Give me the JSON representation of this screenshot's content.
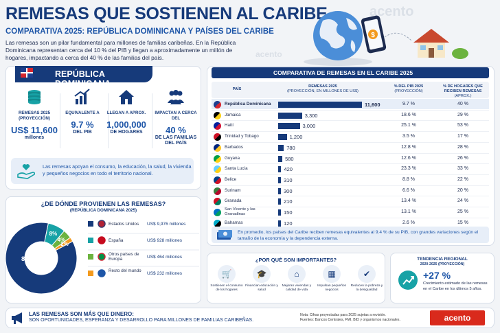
{
  "header": {
    "title": "REMESAS QUE SOSTIENEN AL CARIBE",
    "subtitle": "COMPARATIVA 2025: REPÚBLICA DOMINICANA Y PAÍSES DEL CARIBE",
    "intro": "Las remesas son un pilar fundamental para millones de familias caribeñas. En la República Dominicana representan cerca del 10 % del PIB y llegan a aproximadamente un millón de hogares, impactando a cerca del 40 % de las familias del país.",
    "watermark": "acento"
  },
  "rd": {
    "banner": "REPÚBLICA DOMINICANA",
    "stats": [
      {
        "label": "REMESAS 2025 (PROYECCIÓN)",
        "value": "US$ 11,600",
        "unit": "millones",
        "icon": "coins-icon"
      },
      {
        "label": "EQUIVALENTE A",
        "value": "9.7 %",
        "unit": "DEL PIB",
        "icon": "trend-up-icon"
      },
      {
        "label": "LLEGAN A APROX.",
        "value": "1,000,000",
        "unit": "DE HOGARES",
        "icon": "house-icon"
      },
      {
        "label": "IMPACTAN A CERCA DEL",
        "value": "40 %",
        "unit": "DE LAS FAMILIAS DEL PAÍS",
        "icon": "people-icon"
      }
    ],
    "note": "Las remesas apoyan el consumo, la educación, la salud, la vivienda y pequeños negocios en todo el territorio nacional."
  },
  "sources": {
    "title": "¿DE DÓNDE PROVIENEN LAS REMESAS?",
    "subtitle": "(REPÚBLICA DOMINICANA 2025)"
  },
  "comparison": {
    "banner": "COMPARATIVA DE REMESAS EN EL CARIBE 2025",
    "headers": {
      "country": "PAÍS",
      "remit": "REMESAS 2025",
      "remit_sub": "(PROYECCIÓN, EN MILLONES DE US$)",
      "gdp": "% DEL PIB 2025",
      "gdp_sub": "(PROYECCIÓN)",
      "homes": "% DE HOGARES QUE RECIBEN REMESAS",
      "homes_sub": "(APROX.)"
    },
    "summary": "En promedio, los países del Caribe reciben remesas equivalentes al 9.4 % de su PIB, con grandes variaciones según el tamaño de la economía y la dependencia externa."
  },
  "why": {
    "title": "¿POR QUÉ SON IMPORTANTES?",
    "items": [
      {
        "label": "Sostienen el consumo de los hogares",
        "icon": "cart-icon"
      },
      {
        "label": "Financian educación y salud",
        "icon": "graduation-icon"
      },
      {
        "label": "Mejoran viviendas y calidad de vida",
        "icon": "home-icon"
      },
      {
        "label": "Impulsan pequeños negocios",
        "icon": "store-icon"
      },
      {
        "label": "Reducen la pobreza y la desigualdad",
        "icon": "shield-icon"
      }
    ]
  },
  "trend": {
    "title": "TENDENCIA REGIONAL",
    "period": "2020-2025 (PROYECCIÓN)",
    "value": "+27 %",
    "desc": "Crecimiento estimado de las remesas en el Caribe en los últimos 5 años."
  },
  "footer": {
    "title": "LAS REMESAS SON MÁS QUE DINERO:",
    "sub": "SON OPORTUNIDADES, ESPERANZA Y DESARROLLO PARA MILLONES DE FAMILIAS CARIBEÑAS.",
    "note1": "Nota: Cifras proyectadas para 2025 sujetas a revisión.",
    "note2": "Fuentes: Bancos Centrales, FMI, BID y organismos nacionales.",
    "logo": "acento"
  },
  "colors": {
    "navy": "#163a7a",
    "blue": "#1e56a8",
    "teal": "#17a2a6",
    "green": "#6cb33f",
    "orange": "#f39a1e",
    "red": "#d92a1c"
  },
  "chart_data": [
    {
      "type": "bar",
      "orientation": "horizontal",
      "title": "COMPARATIVA DE REMESAS EN EL CARIBE 2025",
      "categories": [
        "República Dominicana",
        "Jamaica",
        "Haití",
        "Trinidad y Tobago",
        "Barbados",
        "Guyana",
        "Santa Lucía",
        "Belice",
        "Surinam",
        "Granada",
        "San Vicente y las Granadinas",
        "Bahamas"
      ],
      "series": [
        {
          "name": "REMESAS 2025",
          "values": [
            11600,
            3300,
            3000,
            1200,
            780,
            580,
            420,
            310,
            300,
            210,
            150,
            120
          ]
        }
      ],
      "value_labels": [
        "11,600",
        "3,300",
        "3,000",
        "1,200",
        "780",
        "580",
        "420",
        "310",
        "300",
        "210",
        "150",
        "120"
      ],
      "gdp_pct": [
        "9.7 %",
        "18.6 %",
        "25.1 %",
        "3.5 %",
        "12.8 %",
        "12.6 %",
        "23.3 %",
        "8.8 %",
        "6.6 %",
        "13.4 %",
        "13.1 %",
        "2.6 %"
      ],
      "homes_pct": [
        "40 %",
        "29 %",
        "53 %",
        "17 %",
        "28 %",
        "26 %",
        "33 %",
        "22 %",
        "20 %",
        "24 %",
        "25 %",
        "15 %"
      ],
      "xlim": [
        0,
        11600
      ]
    },
    {
      "type": "pie",
      "title": "¿DE DÓNDE PROVIENEN LAS REMESAS?",
      "labels": [
        "Estados Unidos",
        "España",
        "Otros países de Europa",
        "Resto del mundo"
      ],
      "values": [
        86,
        8,
        4,
        2
      ],
      "value_labels": [
        "86%",
        "8%",
        "4%",
        "2%"
      ],
      "amounts": [
        "US$ 9,976 millones",
        "US$ 928 millones",
        "US$ 464 millones",
        "US$ 232 millones"
      ],
      "colors": [
        "#163a7a",
        "#17a2a6",
        "#6cb33f",
        "#f39a1e"
      ]
    }
  ]
}
